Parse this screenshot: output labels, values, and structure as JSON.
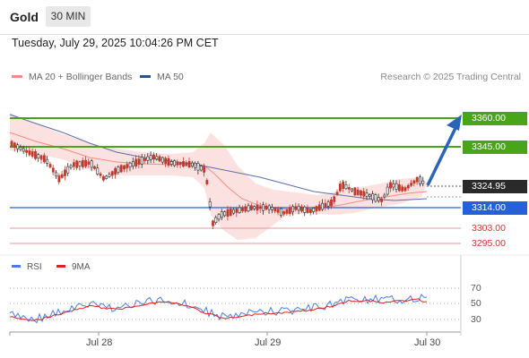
{
  "header": {
    "title": "Gold",
    "timeframe": "30 MIN"
  },
  "datetime": "Tuesday, July 29, 2025 10:04:26 PM CET",
  "legend": {
    "ma20": "MA 20 + Bollinger Bands",
    "ma50": "MA 50",
    "ma20_color": "#f28b82",
    "ma50_color": "#2c4f8f"
  },
  "credit": "Research © 2025 Trading Central",
  "levels": {
    "resistance2": "3360.00",
    "resistance1": "3345.00",
    "last": "3324.95",
    "pivot": "3314.00",
    "support1": "3303.00",
    "support2": "3295.00"
  },
  "rsi": {
    "rsi_label": "RSI",
    "ma_label": "9MA",
    "rsi_color": "#4a7de0",
    "ma_color": "#e02020",
    "axis": [
      "70",
      "50",
      "30"
    ]
  },
  "x_axis": [
    "Jul 28",
    "Jul 29",
    "Jul 30"
  ],
  "colors": {
    "green": "#4aa418",
    "blue": "#2660d6",
    "red": "#d03434",
    "dark": "#2a2a2a"
  }
}
